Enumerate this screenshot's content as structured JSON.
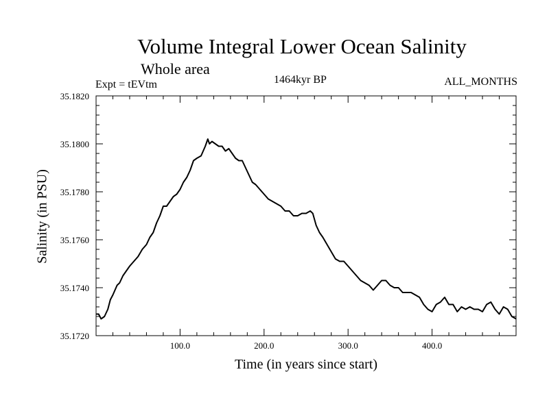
{
  "chart_data": {
    "type": "line",
    "title": "Volume Integral Lower Ocean Salinity",
    "subtitle": "Whole area",
    "experiment_label": "Expt = tEVtm",
    "period_label": "1464kyr BP",
    "months_label": "ALL_MONTHS",
    "xlabel": "Time (in years since start)",
    "ylabel": "Salinity (in PSU)",
    "xlim": [
      0,
      500
    ],
    "ylim": [
      35.172,
      35.182
    ],
    "x_ticks": [
      100,
      200,
      300,
      400
    ],
    "x_tick_labels": [
      "100.0",
      "200.0",
      "300.0",
      "400.0"
    ],
    "y_ticks": [
      35.172,
      35.174,
      35.176,
      35.178,
      35.18,
      35.182
    ],
    "y_tick_labels": [
      "35.1720",
      "35.1740",
      "35.1760",
      "35.1780",
      "35.1800",
      "35.1820"
    ],
    "grid": false,
    "series": [
      {
        "name": "Salinity",
        "color": "#000000",
        "x": [
          0,
          3,
          6,
          10,
          14,
          17,
          20,
          25,
          28,
          32,
          36,
          40,
          45,
          50,
          55,
          60,
          64,
          68,
          72,
          76,
          80,
          84,
          88,
          92,
          96,
          100,
          104,
          108,
          112,
          116,
          120,
          125,
          130,
          133,
          135,
          138,
          142,
          146,
          150,
          154,
          158,
          162,
          166,
          170,
          174,
          178,
          182,
          186,
          190,
          195,
          200,
          205,
          210,
          215,
          220,
          225,
          230,
          235,
          240,
          245,
          250,
          255,
          258,
          262,
          266,
          270,
          275,
          280,
          285,
          290,
          295,
          300,
          305,
          310,
          315,
          320,
          325,
          330,
          335,
          340,
          345,
          350,
          355,
          360,
          365,
          370,
          375,
          380,
          385,
          390,
          395,
          400,
          405,
          410,
          415,
          420,
          425,
          430,
          435,
          440,
          445,
          450,
          455,
          460,
          465,
          470,
          475,
          480,
          485,
          490,
          495,
          500
        ],
        "values": [
          35.1729,
          35.1729,
          35.1727,
          35.1728,
          35.1731,
          35.1735,
          35.1737,
          35.1741,
          35.1742,
          35.1745,
          35.1747,
          35.1749,
          35.1751,
          35.1753,
          35.1756,
          35.1758,
          35.1761,
          35.1763,
          35.1767,
          35.177,
          35.1774,
          35.1774,
          35.1776,
          35.1778,
          35.1779,
          35.1781,
          35.1784,
          35.1786,
          35.1789,
          35.1793,
          35.1794,
          35.1795,
          35.1799,
          35.1802,
          35.18,
          35.1801,
          35.18,
          35.1799,
          35.1799,
          35.1797,
          35.1798,
          35.1796,
          35.1794,
          35.1793,
          35.1793,
          35.179,
          35.1787,
          35.1784,
          35.1783,
          35.1781,
          35.1779,
          35.1777,
          35.1776,
          35.1775,
          35.1774,
          35.1772,
          35.1772,
          35.177,
          35.177,
          35.1771,
          35.1771,
          35.1772,
          35.1771,
          35.1766,
          35.1763,
          35.1761,
          35.1758,
          35.1755,
          35.1752,
          35.1751,
          35.1751,
          35.1749,
          35.1747,
          35.1745,
          35.1743,
          35.1742,
          35.1741,
          35.1739,
          35.1741,
          35.1743,
          35.1743,
          35.1741,
          35.174,
          35.174,
          35.1738,
          35.1738,
          35.1738,
          35.1737,
          35.1736,
          35.1733,
          35.1731,
          35.173,
          35.1733,
          35.1734,
          35.1736,
          35.1733,
          35.1733,
          35.173,
          35.1732,
          35.1731,
          35.1732,
          35.1731,
          35.1731,
          35.173,
          35.1733,
          35.1734,
          35.1731,
          35.1729,
          35.1732,
          35.1731,
          35.1728,
          35.1727
        ]
      }
    ]
  }
}
